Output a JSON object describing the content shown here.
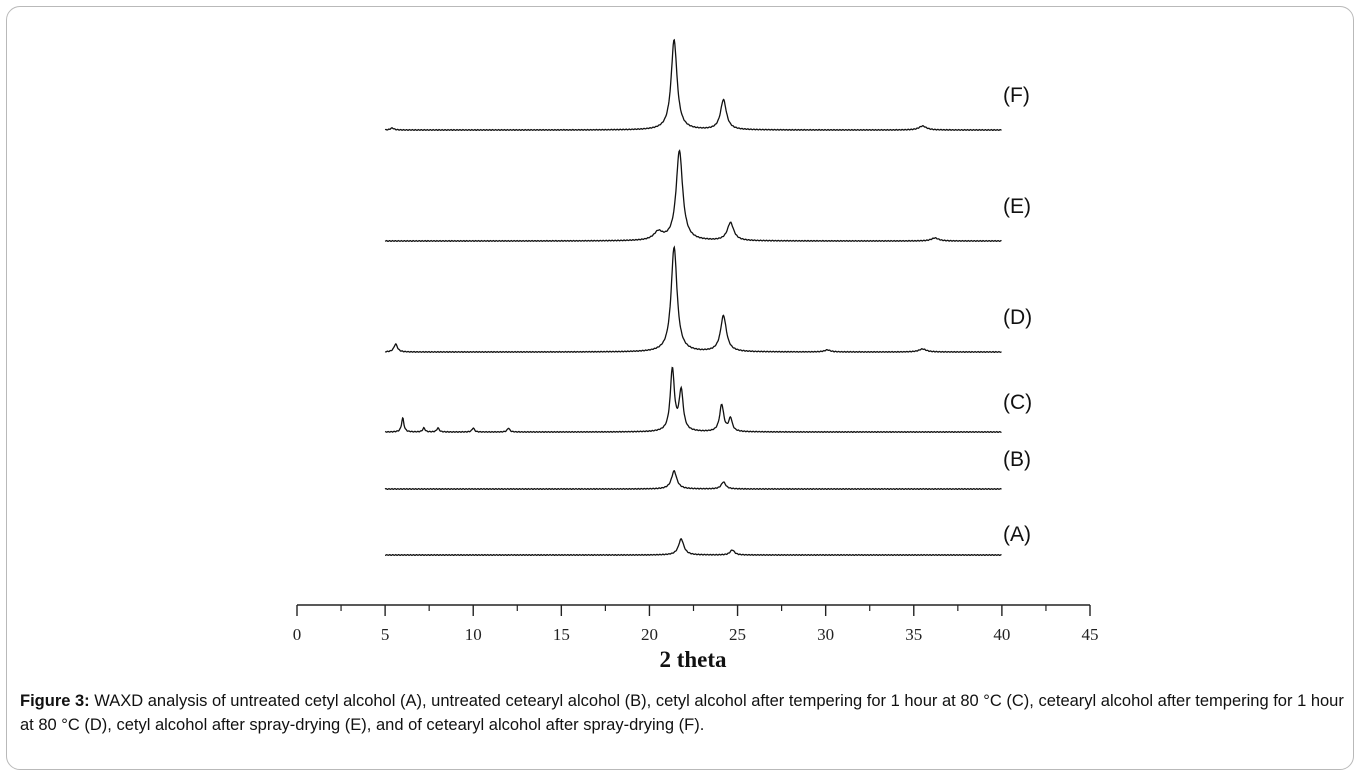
{
  "figure": {
    "caption_label": "Figure 3:",
    "caption_text": " WAXD analysis of untreated cetyl alcohol (A), untreated cetearyl alcohol (B), cetyl alcohol after tempering for 1 hour at 80 °C (C), cetearyl alcohol after tempering for 1 hour at 80 °C (D), cetyl alcohol after spray-drying (E), and of cetearyl alcohol after spray-drying (F)."
  },
  "chart_data": {
    "type": "line",
    "title": "",
    "xlabel": "2 theta",
    "ylabel": "",
    "xlim": [
      0,
      45
    ],
    "x_ticks": [
      "0",
      "5",
      "10",
      "15",
      "20",
      "25",
      "30",
      "35",
      "40",
      "45"
    ],
    "x_tick_values": [
      0,
      5,
      10,
      15,
      20,
      25,
      30,
      35,
      40,
      45
    ],
    "y_axis_shown": false,
    "grid": false,
    "line_color": "#111111",
    "stacking": "vertically offset traces",
    "series": [
      {
        "name": "(A)",
        "x_range": [
          5,
          40
        ],
        "peaks": [
          {
            "x": 21.8,
            "height": 16,
            "width": 0.18
          },
          {
            "x": 24.7,
            "height": 5,
            "width": 0.15
          }
        ]
      },
      {
        "name": "(B)",
        "x_range": [
          5,
          40
        ],
        "peaks": [
          {
            "x": 21.4,
            "height": 18,
            "width": 0.18
          },
          {
            "x": 24.2,
            "height": 7,
            "width": 0.15
          }
        ]
      },
      {
        "name": "(C)",
        "x_range": [
          5,
          40
        ],
        "peaks": [
          {
            "x": 6.0,
            "height": 14,
            "width": 0.08
          },
          {
            "x": 7.2,
            "height": 4,
            "width": 0.08
          },
          {
            "x": 8.0,
            "height": 4,
            "width": 0.08
          },
          {
            "x": 10.0,
            "height": 4,
            "width": 0.08
          },
          {
            "x": 12.0,
            "height": 4,
            "width": 0.08
          },
          {
            "x": 21.3,
            "height": 62,
            "width": 0.14
          },
          {
            "x": 21.8,
            "height": 40,
            "width": 0.14
          },
          {
            "x": 24.1,
            "height": 27,
            "width": 0.14
          },
          {
            "x": 24.6,
            "height": 13,
            "width": 0.12
          }
        ]
      },
      {
        "name": "(D)",
        "x_range": [
          5,
          40
        ],
        "peaks": [
          {
            "x": 5.6,
            "height": 8,
            "width": 0.12
          },
          {
            "x": 21.4,
            "height": 105,
            "width": 0.2
          },
          {
            "x": 24.2,
            "height": 36,
            "width": 0.2
          },
          {
            "x": 30.1,
            "height": 2,
            "width": 0.2
          },
          {
            "x": 35.5,
            "height": 3,
            "width": 0.25
          }
        ]
      },
      {
        "name": "(E)",
        "x_range": [
          5,
          40
        ],
        "peaks": [
          {
            "x": 20.5,
            "height": 8,
            "width": 0.3
          },
          {
            "x": 21.7,
            "height": 90,
            "width": 0.22
          },
          {
            "x": 24.6,
            "height": 18,
            "width": 0.22
          },
          {
            "x": 36.2,
            "height": 3,
            "width": 0.25
          }
        ]
      },
      {
        "name": "(F)",
        "x_range": [
          5,
          40
        ],
        "peaks": [
          {
            "x": 5.4,
            "height": 2,
            "width": 0.12
          },
          {
            "x": 21.4,
            "height": 90,
            "width": 0.2
          },
          {
            "x": 24.2,
            "height": 30,
            "width": 0.2
          },
          {
            "x": 35.5,
            "height": 4,
            "width": 0.25
          }
        ]
      }
    ]
  }
}
